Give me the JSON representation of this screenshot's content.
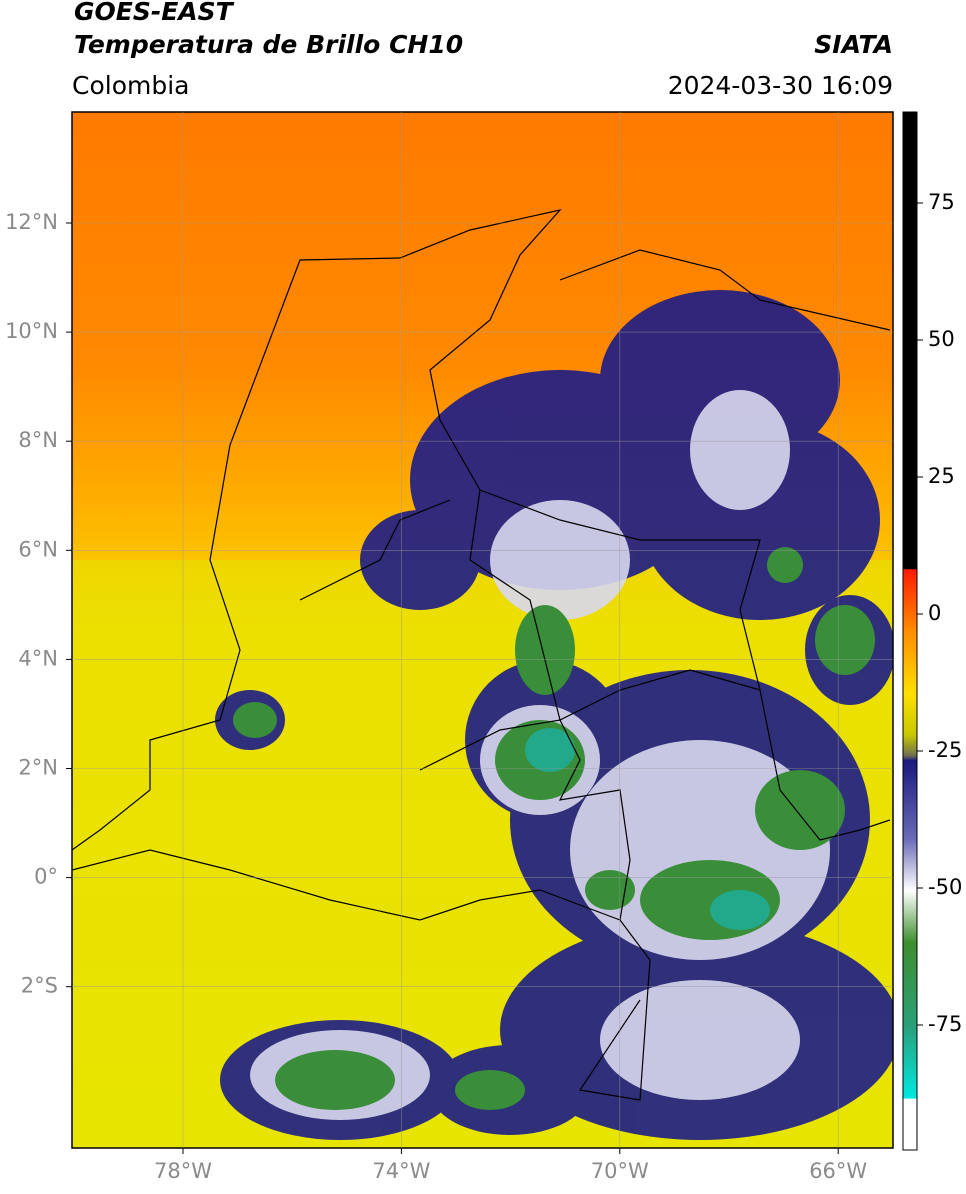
{
  "header": {
    "title": "GOES-EAST",
    "subtitle": "Temperatura de Brillo CH10",
    "agency": "SIATA",
    "region": "Colombia",
    "datetime": "2024-03-30 16:09"
  },
  "map": {
    "lat_ticks": [
      "12°N",
      "10°N",
      "8°N",
      "6°N",
      "4°N",
      "2°N",
      "0°",
      "2°S"
    ],
    "lon_ticks": [
      "78°W",
      "74°W",
      "70°W",
      "66°W"
    ]
  },
  "colorbar": {
    "ticks": [
      "75",
      "50",
      "25",
      "0",
      "-25",
      "-50",
      "-75"
    ]
  }
}
